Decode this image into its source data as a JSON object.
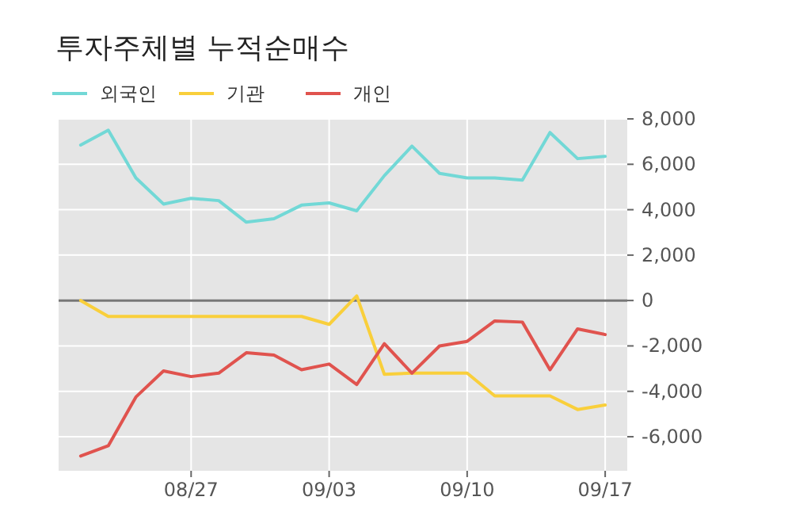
{
  "chart_data": {
    "type": "line",
    "title": "투자주체별 누적순매수",
    "categories": [
      null,
      null,
      null,
      null,
      "08/27",
      null,
      null,
      null,
      null,
      "09/03",
      null,
      null,
      null,
      null,
      "09/10",
      null,
      null,
      null,
      null,
      "09/17"
    ],
    "series": [
      {
        "name": "외국인",
        "color": "#72d8d6",
        "values": [
          6850,
          7500,
          5400,
          4250,
          4500,
          4400,
          3450,
          3600,
          4200,
          4300,
          3950,
          5500,
          6800,
          5600,
          5400,
          5400,
          5300,
          7400,
          6250,
          6350
        ]
      },
      {
        "name": "기관",
        "color": "#f9cf3b",
        "values": [
          0,
          -700,
          -700,
          -700,
          -700,
          -700,
          -700,
          -700,
          -700,
          -1050,
          200,
          -3250,
          -3200,
          -3200,
          -3200,
          -4200,
          -4200,
          -4200,
          -4800,
          -4600
        ]
      },
      {
        "name": "개인",
        "color": "#e0534e",
        "values": [
          -6850,
          -6400,
          -4250,
          -3100,
          -3350,
          -3200,
          -2300,
          -2400,
          -3050,
          -2800,
          -3700,
          -1900,
          -3200,
          -2000,
          -1800,
          -900,
          -950,
          -3050,
          -1250,
          -1500
        ]
      }
    ],
    "ylim": [
      -7500,
      8000
    ],
    "yticks": [
      {
        "value": -6000,
        "label": "-6,000"
      },
      {
        "value": -4000,
        "label": "-4,000"
      },
      {
        "value": -2000,
        "label": "-2,000"
      },
      0,
      {
        "value": 2000,
        "label": "2,000"
      },
      {
        "value": 4000,
        "label": "4,000"
      },
      {
        "value": 6000,
        "label": "6,000"
      },
      {
        "value": 8000,
        "label": "8,000"
      }
    ],
    "ref_lines": [
      {
        "axis": "y",
        "value": 0,
        "color": "#777777"
      }
    ],
    "grid": true,
    "legend": "top left",
    "marker": "none",
    "line_style": "solid"
  }
}
